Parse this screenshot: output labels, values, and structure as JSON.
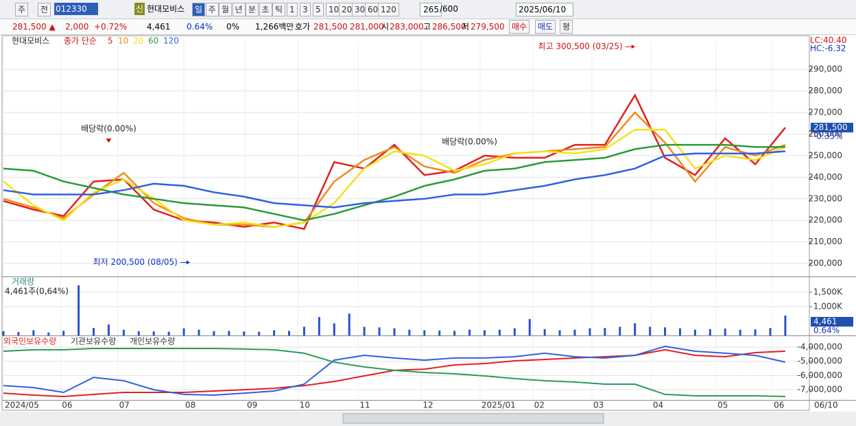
{
  "toolbar": {
    "market": "주",
    "prev": "전",
    "code": "012330",
    "badge": "신",
    "name": "현대모비스",
    "periods": [
      "일",
      "주",
      "월",
      "년",
      "분",
      "초",
      "틱"
    ],
    "intervals": [
      "1",
      "3",
      "5",
      "10",
      "20",
      "30",
      "60",
      "120"
    ],
    "count": "265",
    "max": "/600",
    "date": "2025/06/10"
  },
  "quote": {
    "price": "281,500 ▲",
    "change": "2,000",
    "rate": "+0.72%",
    "volume": "4,461",
    "vol_rate": "0.64%",
    "zero": "0%",
    "amount": "1,266백만",
    "ask_label": "호가",
    "ask": "281,500",
    "bid": "281,000",
    "open_label": "시",
    "open": "283,000",
    "high_label": "고",
    "high": "286,500",
    "low_label": "저",
    "low": "279,500",
    "buy": "매수",
    "sell": "매도",
    "avg": "평"
  },
  "chart_data": [
    {
      "type": "line",
      "name_label": "현대모비스",
      "legend_title": "종가 단순",
      "lc": "LC:40.40",
      "hc": "HC:-6.32",
      "last_label": "281,500",
      "last_change": "-0.35%",
      "xlim": [
        0,
        268
      ],
      "ylim": [
        194000,
        305600
      ],
      "yticks": [
        {
          "value": 200000,
          "label": "200,000"
        },
        {
          "value": 210000,
          "label": "210,000"
        },
        {
          "value": 220000,
          "label": "220,000"
        },
        {
          "value": 230000,
          "label": "230,000"
        },
        {
          "value": 240000,
          "label": "240,000"
        },
        {
          "value": 250000,
          "label": "250,000"
        },
        {
          "value": 260000,
          "label": "260,000"
        },
        {
          "value": 270000,
          "label": "270,000"
        },
        {
          "value": 280000,
          "label": "280,000"
        },
        {
          "value": 290000,
          "label": "290,000"
        }
      ],
      "x": [
        0,
        10,
        20,
        30,
        40,
        50,
        60,
        70,
        80,
        90,
        100,
        110,
        120,
        130,
        140,
        150,
        160,
        170,
        180,
        190,
        200,
        210,
        220,
        230,
        240,
        250,
        260
      ],
      "series": [
        {
          "name": "5",
          "color": "#e0201c",
          "values": [
            229000,
            225000,
            222000,
            238000,
            239000,
            225000,
            220000,
            219000,
            217000,
            219000,
            216000,
            247000,
            244000,
            255000,
            241000,
            243000,
            250000,
            249000,
            249000,
            255000,
            255000,
            278000,
            249000,
            241000,
            258000,
            246000,
            263000
          ]
        },
        {
          "name": "10",
          "color": "#f08a1e",
          "values": [
            230000,
            226000,
            221000,
            232000,
            242000,
            228000,
            221000,
            218000,
            218000,
            217000,
            219000,
            238000,
            248000,
            254000,
            245000,
            242000,
            248000,
            251000,
            252000,
            253000,
            254000,
            270000,
            256000,
            238000,
            254000,
            250000,
            255000
          ]
        },
        {
          "name": "20",
          "color": "#f2e21a",
          "values": [
            238000,
            227000,
            220000,
            233000,
            239000,
            230000,
            220000,
            218000,
            219000,
            217000,
            219000,
            228000,
            244000,
            252000,
            250000,
            243000,
            246000,
            251000,
            252000,
            251000,
            253000,
            262000,
            262000,
            244000,
            250000,
            248000,
            254000
          ]
        },
        {
          "name": "60",
          "color": "#2a9a3a",
          "values": [
            244000,
            243000,
            238000,
            235000,
            232000,
            230000,
            228000,
            227000,
            226000,
            223000,
            220000,
            223000,
            227000,
            231000,
            236000,
            239000,
            243000,
            244000,
            247000,
            248000,
            249000,
            253000,
            255000,
            255000,
            255000,
            254000,
            254000
          ]
        },
        {
          "name": "120",
          "color": "#3060e0",
          "values": [
            234000,
            232000,
            232000,
            232000,
            234000,
            237000,
            236000,
            233000,
            231000,
            228000,
            227000,
            226000,
            228000,
            229000,
            230000,
            232000,
            232000,
            234000,
            236000,
            239000,
            241000,
            244000,
            250000,
            251000,
            251000,
            251000,
            252000
          ]
        }
      ],
      "annotations": [
        {
          "text": "최고 300,500 (03/25)",
          "x": 210,
          "y": 300500,
          "dir": "right"
        },
        {
          "text": "최저 200,500 (08/05)",
          "x": 62,
          "y": 200500,
          "dir": "right"
        },
        {
          "text": "배당락(0.00%)",
          "x": 35,
          "y": 256000,
          "dir": "down"
        },
        {
          "text": "배당락(0.00%)",
          "x": 155,
          "y": 250000,
          "dir": "none"
        }
      ]
    },
    {
      "type": "bar",
      "title": "거래량",
      "subtitle": "4,461주(0,64%)",
      "last_label": "4,461",
      "last_change": "0.64%",
      "color": "#2a50d0",
      "xlim": [
        0,
        268
      ],
      "ylim": [
        0,
        2024
      ],
      "yticks": [
        {
          "value": 1000,
          "label": "1,000K"
        },
        {
          "value": 1500,
          "label": "1,500K"
        }
      ],
      "x": [
        0,
        5,
        10,
        15,
        20,
        25,
        30,
        35,
        40,
        45,
        50,
        55,
        60,
        65,
        70,
        75,
        80,
        85,
        90,
        95,
        100,
        105,
        110,
        115,
        120,
        125,
        130,
        135,
        140,
        145,
        150,
        155,
        160,
        165,
        170,
        175,
        180,
        185,
        190,
        195,
        200,
        205,
        210,
        215,
        220,
        225,
        230,
        235,
        240,
        245,
        250,
        255,
        260
      ],
      "values": [
        150,
        120,
        180,
        100,
        160,
        1740,
        260,
        380,
        200,
        150,
        140,
        130,
        250,
        200,
        150,
        160,
        140,
        130,
        180,
        160,
        300,
        640,
        420,
        760,
        300,
        280,
        250,
        200,
        180,
        170,
        160,
        200,
        180,
        200,
        250,
        570,
        220,
        180,
        200,
        250,
        260,
        300,
        420,
        300,
        280,
        250,
        200,
        220,
        240,
        200,
        210,
        260,
        690
      ]
    },
    {
      "type": "line",
      "xlim": [
        0,
        268
      ],
      "ylim": [
        -7720000,
        -3230000
      ],
      "x_end_label": "06/10",
      "yticks": [
        {
          "value": -7000000,
          "label": "-7,000,000"
        },
        {
          "value": -6000000,
          "label": "-6,000,000"
        },
        {
          "value": -5000000,
          "label": "-5,000,000"
        },
        {
          "value": -4000000,
          "label": "-4,000,000"
        }
      ],
      "xticks": [
        {
          "value": 0,
          "label": "2024/05"
        },
        {
          "value": 19,
          "label": "06"
        },
        {
          "value": 38,
          "label": "07"
        },
        {
          "value": 60,
          "label": "08"
        },
        {
          "value": 80.5,
          "label": "09"
        },
        {
          "value": 98,
          "label": "10"
        },
        {
          "value": 118,
          "label": "11"
        },
        {
          "value": 139,
          "label": "12"
        },
        {
          "value": 158.5,
          "label": "2025/01"
        },
        {
          "value": 176,
          "label": "02"
        },
        {
          "value": 195.7,
          "label": "03"
        },
        {
          "value": 215.5,
          "label": "04"
        },
        {
          "value": 237,
          "label": "05"
        },
        {
          "value": 255.7,
          "label": "06"
        }
      ],
      "x": [
        0,
        10,
        20,
        30,
        40,
        50,
        60,
        70,
        80,
        90,
        100,
        110,
        120,
        130,
        140,
        150,
        160,
        170,
        180,
        190,
        200,
        210,
        220,
        230,
        240,
        250,
        260
      ],
      "series": [
        {
          "name": "외국인보유수량",
          "color": "#e0201c",
          "values": [
            -7240000,
            -7380000,
            -7480000,
            -7330000,
            -7190000,
            -7190000,
            -7190000,
            -7090000,
            -7000000,
            -6900000,
            -6710000,
            -6420000,
            -6030000,
            -5640000,
            -5550000,
            -5260000,
            -5160000,
            -4970000,
            -4870000,
            -4770000,
            -4680000,
            -4580000,
            -4190000,
            -4580000,
            -4680000,
            -4390000,
            -4290000
          ]
        },
        {
          "name": "기관보유수량",
          "color": "#3060e0",
          "values": [
            -6710000,
            -6850000,
            -7190000,
            -6130000,
            -6370000,
            -7000000,
            -7330000,
            -7380000,
            -7240000,
            -7090000,
            -6610000,
            -4920000,
            -4580000,
            -4770000,
            -4920000,
            -4770000,
            -4770000,
            -4680000,
            -4430000,
            -4680000,
            -4770000,
            -4580000,
            -3950000,
            -4290000,
            -4430000,
            -4580000,
            -5060000
          ]
        },
        {
          "name": "개인보유수량",
          "color": "#2a9a5a",
          "values": [
            -4290000,
            -4190000,
            -4190000,
            -4100000,
            -4100000,
            -4100000,
            -4100000,
            -4100000,
            -4140000,
            -4190000,
            -4430000,
            -5060000,
            -5400000,
            -5640000,
            -5790000,
            -5880000,
            -6030000,
            -6220000,
            -6370000,
            -6460000,
            -6610000,
            -6610000,
            -7330000,
            -7430000,
            -7430000,
            -7430000,
            -7480000
          ]
        }
      ]
    }
  ]
}
